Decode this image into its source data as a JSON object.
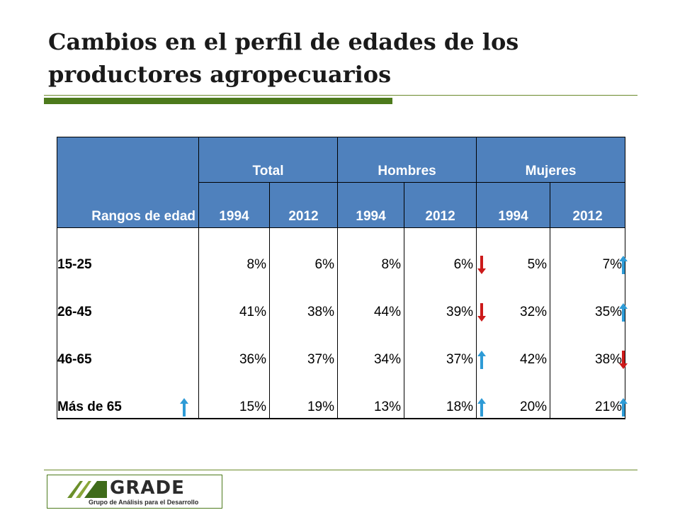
{
  "slide": {
    "title": "Cambios en el perfil de edades de los productores agropecuarios"
  },
  "table": {
    "age_header": "Rangos de edad",
    "groups": [
      "Total",
      "Hombres",
      "Mujeres"
    ],
    "years": [
      "1994",
      "2012",
      "1994",
      "2012",
      "1994",
      "2012"
    ],
    "rows": [
      {
        "label": "15-25",
        "values": [
          "8%",
          "6%",
          "8%",
          "6%",
          "5%",
          "7%"
        ],
        "hombres_trend": "down",
        "mujeres_trend": "up"
      },
      {
        "label": "26-45",
        "values": [
          "41%",
          "38%",
          "44%",
          "39%",
          "32%",
          "35%"
        ],
        "hombres_trend": "down",
        "mujeres_trend": "up"
      },
      {
        "label": "46-65",
        "values": [
          "36%",
          "37%",
          "34%",
          "37%",
          "42%",
          "38%"
        ],
        "hombres_trend": "up",
        "mujeres_trend": "down"
      },
      {
        "label": "Más de 65",
        "values": [
          "15%",
          "19%",
          "13%",
          "18%",
          "20%",
          "21%"
        ],
        "age_trend": "up",
        "hombres_trend": "up",
        "mujeres_trend": "up"
      }
    ]
  },
  "colors": {
    "header_fill": "#4f81bd",
    "up_arrow": "#2e9bd6",
    "down_arrow": "#cc1a1a",
    "accent_green": "#4d7a1c"
  },
  "logo": {
    "name": "GRADE",
    "subtitle": "Grupo de Análisis para el Desarrollo"
  }
}
